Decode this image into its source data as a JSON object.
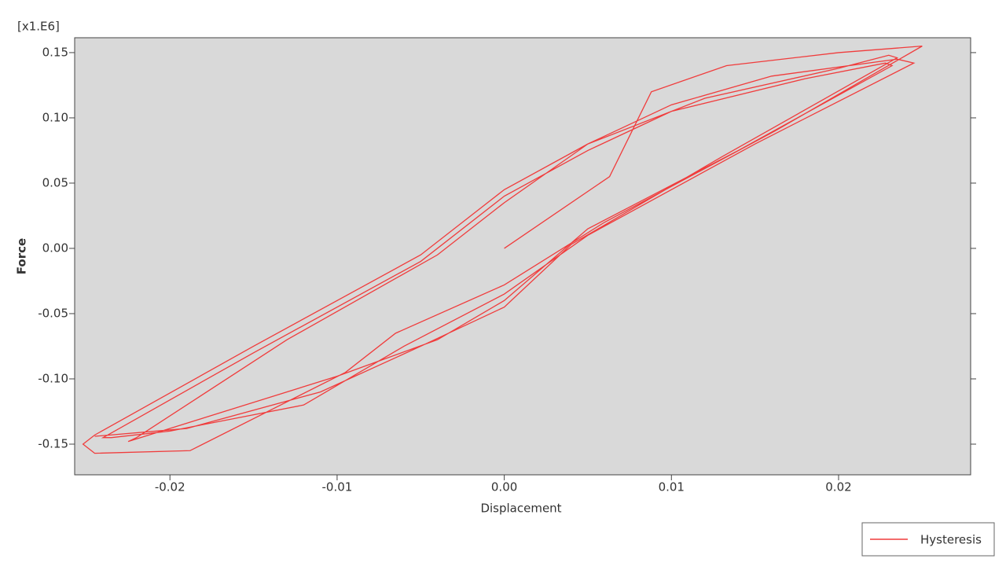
{
  "chart_data": {
    "type": "line",
    "y_multiplier": "[x1.E6]",
    "xlabel": "Displacement",
    "ylabel": "Force",
    "x": [
      0,
      0.0063,
      0.0088,
      0.0133,
      0.02,
      0.025,
      0.0162,
      0.006,
      0.0,
      -0.0065,
      -0.0095,
      -0.0188,
      -0.0245,
      -0.0252,
      -0.0245,
      -0.015,
      -0.005,
      0.0,
      0.005,
      0.01,
      0.016,
      0.0235,
      0.0245,
      0.015,
      0.005,
      0.0,
      -0.006,
      -0.012,
      -0.02,
      -0.0235,
      -0.024,
      -0.015,
      -0.005,
      0.0,
      0.005,
      0.01,
      0.018,
      0.0228,
      0.0232,
      0.014,
      0.005,
      0.0,
      -0.004,
      -0.01,
      -0.018,
      -0.0225,
      -0.022,
      -0.013,
      -0.004,
      0.0,
      0.005,
      0.012,
      0.02,
      0.023,
      0.0235,
      0.013,
      0.004,
      0.0,
      -0.005,
      -0.011,
      -0.019,
      -0.0245
    ],
    "series": [
      {
        "name": "Hysteresis",
        "color": "#f03c3c",
        "values": [
          0,
          0.055,
          0.12,
          0.14,
          0.15,
          0.155,
          0.09,
          0.02,
          -0.028,
          -0.065,
          -0.095,
          -0.155,
          -0.157,
          -0.15,
          -0.143,
          -0.075,
          -0.005,
          0.045,
          0.08,
          0.11,
          0.132,
          0.145,
          0.142,
          0.08,
          0.01,
          -0.035,
          -0.075,
          -0.12,
          -0.14,
          -0.145,
          -0.145,
          -0.08,
          -0.01,
          0.04,
          0.075,
          0.105,
          0.13,
          0.142,
          0.14,
          0.075,
          0.015,
          -0.04,
          -0.07,
          -0.098,
          -0.13,
          -0.148,
          -0.145,
          -0.07,
          -0.005,
          0.035,
          0.08,
          0.115,
          0.138,
          0.148,
          0.146,
          0.07,
          0.003,
          -0.045,
          -0.075,
          -0.11,
          -0.138,
          -0.144
        ]
      }
    ],
    "xlim": [
      -0.0257,
      0.0279
    ],
    "ylim": [
      -0.1735,
      0.1614
    ],
    "xticks": [
      -0.02,
      -0.01,
      {
        "value": 0,
        "label": "0.00"
      },
      0.01,
      0.02
    ],
    "yticks": [
      -0.15,
      {
        "value": -0.1,
        "label": "-0.10"
      },
      -0.05,
      {
        "value": 0,
        "label": "0.00"
      },
      0.05,
      {
        "value": 0.1,
        "label": "0.10"
      },
      0.15
    ],
    "legend": "bottom-right",
    "plot_background": "#d9d9d9"
  }
}
